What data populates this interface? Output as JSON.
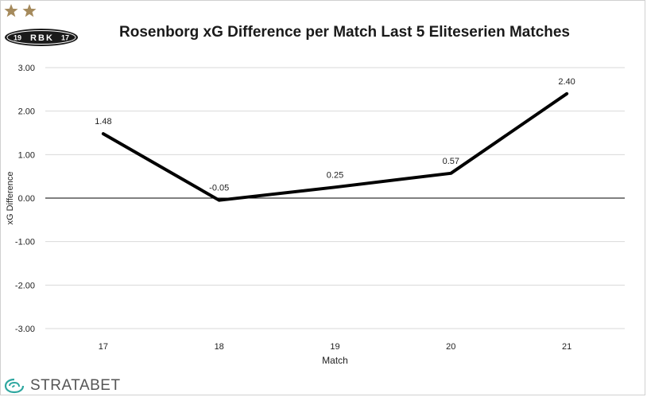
{
  "colors": {
    "line": "#000000",
    "gridline": "#d9d9d9",
    "zero_line": "#000000",
    "logo_star": "#a58a5c",
    "logo_badge": "#1a1a1a",
    "brand_icon": "#2fa7a0"
  },
  "logo": {
    "left_number": "19",
    "letters": [
      "R",
      "B",
      "K"
    ],
    "right_number": "17",
    "stars": 2
  },
  "brand": {
    "name": "STRATABET",
    "icon": "stratabet-swirl-icon"
  },
  "chart_data": {
    "type": "line",
    "title": "Rosenborg  xG Difference per Match Last 5 Eliteserien Matches",
    "xlabel": "Match",
    "ylabel": "xG Difference",
    "categories": [
      "17",
      "18",
      "19",
      "20",
      "21"
    ],
    "series": [
      {
        "values": [
          1.48,
          -0.05,
          0.25,
          0.57,
          2.4
        ],
        "labels": [
          "1.48",
          "-0.05",
          "0.25",
          "0.57",
          "2.40"
        ]
      }
    ],
    "ylim": [
      -3,
      3
    ],
    "yticks": [
      3,
      2,
      1,
      0,
      -1,
      -2,
      -3
    ],
    "ytick_labels": [
      "3.00",
      "2.00",
      "1.00",
      "0.00",
      "-1.00",
      "-2.00",
      "-3.00"
    ],
    "grid": true
  }
}
